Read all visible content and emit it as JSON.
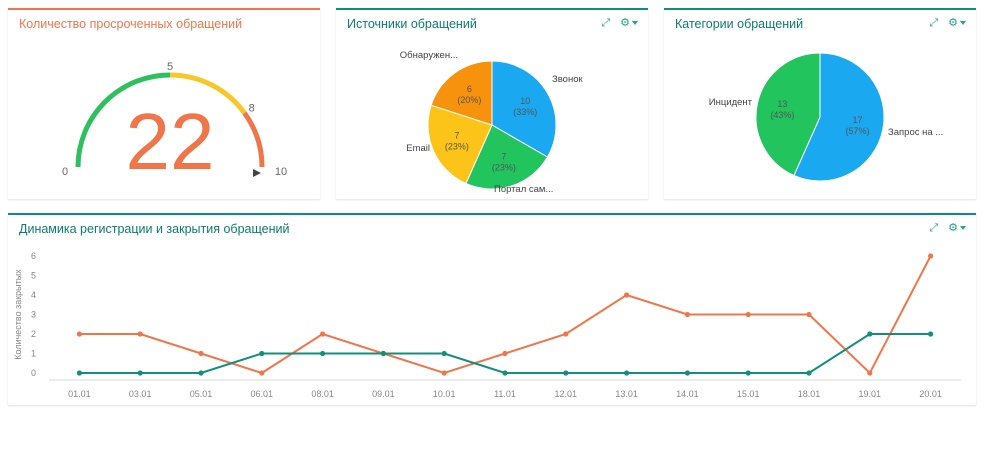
{
  "gauge_panel": {
    "title": "Количество просроченных обращений",
    "value": "22",
    "gauge": {
      "min": 0,
      "max": 10,
      "ticks": [
        "0",
        "5",
        "8",
        "10"
      ],
      "zones": [
        {
          "from": 0,
          "to": 5,
          "color": "#2ec05e"
        },
        {
          "from": 5,
          "to": 8,
          "color": "#f7c82a"
        },
        {
          "from": 8,
          "to": 10,
          "color": "#f0764a"
        }
      ]
    }
  },
  "chart_data": [
    {
      "type": "pie",
      "title": "Источники обращений",
      "slices": [
        {
          "label": "Звонок",
          "value": 10,
          "value_label": "10",
          "percent_label": "(33%)",
          "color": "#1aa8f0"
        },
        {
          "label": "Портал сам...",
          "value": 7,
          "value_label": "7",
          "percent_label": "(23%)",
          "color": "#22c45e"
        },
        {
          "label": "Email",
          "value": 7,
          "value_label": "7",
          "percent_label": "(23%)",
          "color": "#fcc419"
        },
        {
          "label": "Обнаружен...",
          "value": 6,
          "value_label": "6",
          "percent_label": "(20%)",
          "color": "#f7920c"
        }
      ]
    },
    {
      "type": "pie",
      "title": "Категории обращений",
      "slices": [
        {
          "label": "Запрос на ...",
          "value": 17,
          "value_label": "17",
          "percent_label": "(57%)",
          "color": "#1aa8f0"
        },
        {
          "label": "Инцидент",
          "value": 13,
          "value_label": "13",
          "percent_label": "(43%)",
          "color": "#22c45e"
        }
      ]
    },
    {
      "type": "line",
      "title": "Динамика регистрации и закрытия обращений",
      "ylabel": "Количество закрытых",
      "ylim": [
        0,
        6
      ],
      "yticks": [
        "0",
        "1",
        "2",
        "3",
        "4",
        "5",
        "6"
      ],
      "categories": [
        "01.01",
        "03.01",
        "05.01",
        "06.01",
        "08.01",
        "09.01",
        "10.01",
        "11.01",
        "12.01",
        "13.01",
        "14.01",
        "15.01",
        "18.01",
        "19.01",
        "20.01"
      ],
      "series": [
        {
          "color": "#f0764a",
          "values": [
            2,
            2,
            1,
            0,
            2,
            1,
            0,
            1,
            2,
            4,
            3,
            3,
            3,
            0,
            6
          ]
        },
        {
          "color": "#138f7c",
          "values": [
            0,
            0,
            0,
            1,
            1,
            1,
            1,
            0,
            0,
            0,
            0,
            0,
            0,
            2,
            2
          ]
        }
      ]
    }
  ],
  "icons": {
    "expand": "expand-icon",
    "settings": "gear-icon"
  }
}
